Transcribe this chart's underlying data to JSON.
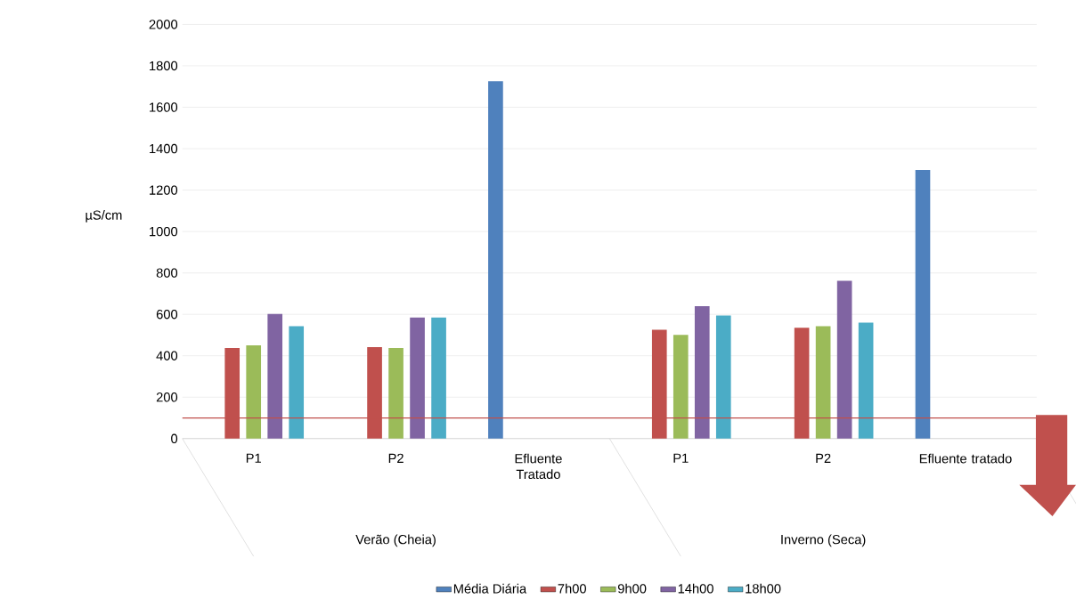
{
  "chart_data": {
    "type": "bar",
    "ylabel": "µS/cm",
    "categories": [
      "P1",
      "P2",
      "Efluente Tratado",
      "P1",
      "P2",
      "Efluente tratado"
    ],
    "annotations": [
      "Verão (Cheia)",
      "Inverno (Seca)"
    ],
    "series": [
      {
        "name": "Média Diária",
        "color": "#4f81bd",
        "values": [
          null,
          null,
          1726,
          null,
          null,
          1297
        ]
      },
      {
        "name": "7h00",
        "color": "#c0504d",
        "values": [
          438,
          442,
          null,
          526,
          535,
          null
        ]
      },
      {
        "name": "9h00",
        "color": "#9bbb59",
        "values": [
          450,
          438,
          null,
          501,
          543,
          null
        ]
      },
      {
        "name": "14h00",
        "color": "#8064a2",
        "values": [
          602,
          585,
          null,
          640,
          762,
          null
        ]
      },
      {
        "name": "18h00",
        "color": "#4bacc6",
        "values": [
          543,
          585,
          null,
          594,
          560,
          null
        ]
      }
    ],
    "ylim": [
      0,
      2000
    ],
    "yticks": [
      0,
      200,
      400,
      600,
      800,
      1000,
      1200,
      1400,
      1600,
      1800,
      2000
    ],
    "grid": "y",
    "legend": "bottom",
    "ref_lines": [
      {
        "axis": "y",
        "value": 100,
        "color": "#c0504d"
      }
    ]
  }
}
